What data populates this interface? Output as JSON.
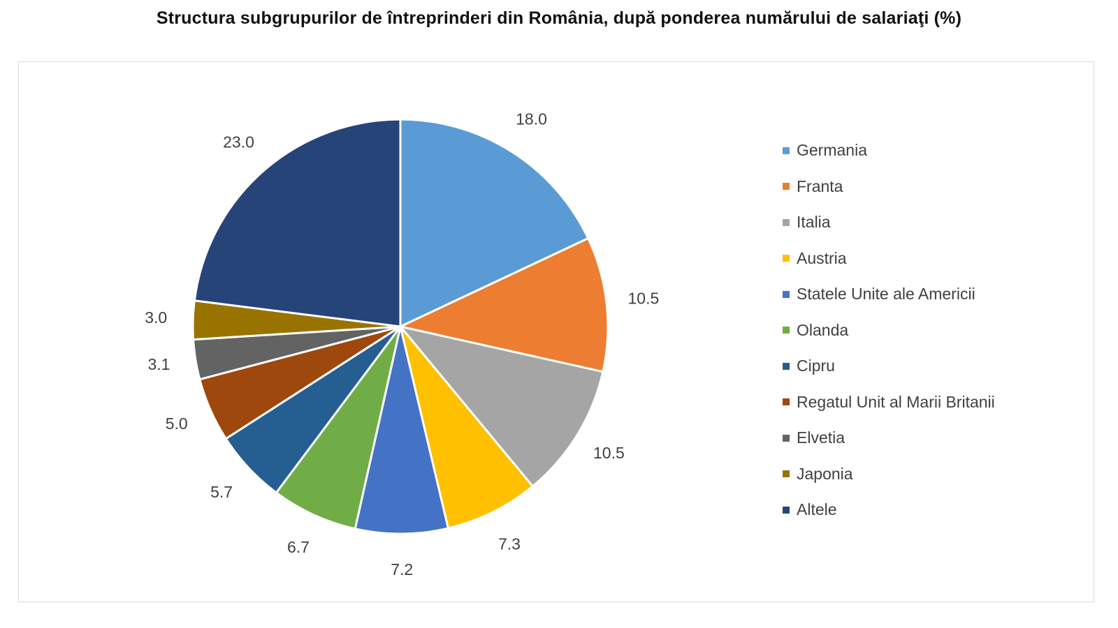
{
  "chart_data": {
    "type": "pie",
    "title": "Structura subgrupurilor de întreprinderi din România, după ponderea numărului de salariaţi (%)",
    "legend_position": "right",
    "slices": [
      {
        "label": "Germania",
        "value": 18.0,
        "value_label": "18.0",
        "color": "#5b9bd5"
      },
      {
        "label": "Franta",
        "value": 10.5,
        "value_label": "10.5",
        "color": "#ed7d31"
      },
      {
        "label": "Italia",
        "value": 10.5,
        "value_label": "10.5",
        "color": "#a5a5a5"
      },
      {
        "label": "Austria",
        "value": 7.3,
        "value_label": "7.3",
        "color": "#ffc000"
      },
      {
        "label": "Statele Unite ale Americii",
        "value": 7.2,
        "value_label": "7.2",
        "color": "#4472c4"
      },
      {
        "label": "Olanda",
        "value": 6.7,
        "value_label": "6.7",
        "color": "#70ad47"
      },
      {
        "label": "Cipru",
        "value": 5.7,
        "value_label": "5.7",
        "color": "#255e91"
      },
      {
        "label": "Regatul Unit al Marii Britanii",
        "value": 5.0,
        "value_label": "5.0",
        "color": "#9e480e"
      },
      {
        "label": "Elvetia",
        "value": 3.1,
        "value_label": "3.1",
        "color": "#636363"
      },
      {
        "label": "Japonia",
        "value": 3.0,
        "value_label": "3.0",
        "color": "#997300"
      },
      {
        "label": "Altele",
        "value": 23.0,
        "value_label": "23.0",
        "color": "#264478"
      }
    ]
  }
}
